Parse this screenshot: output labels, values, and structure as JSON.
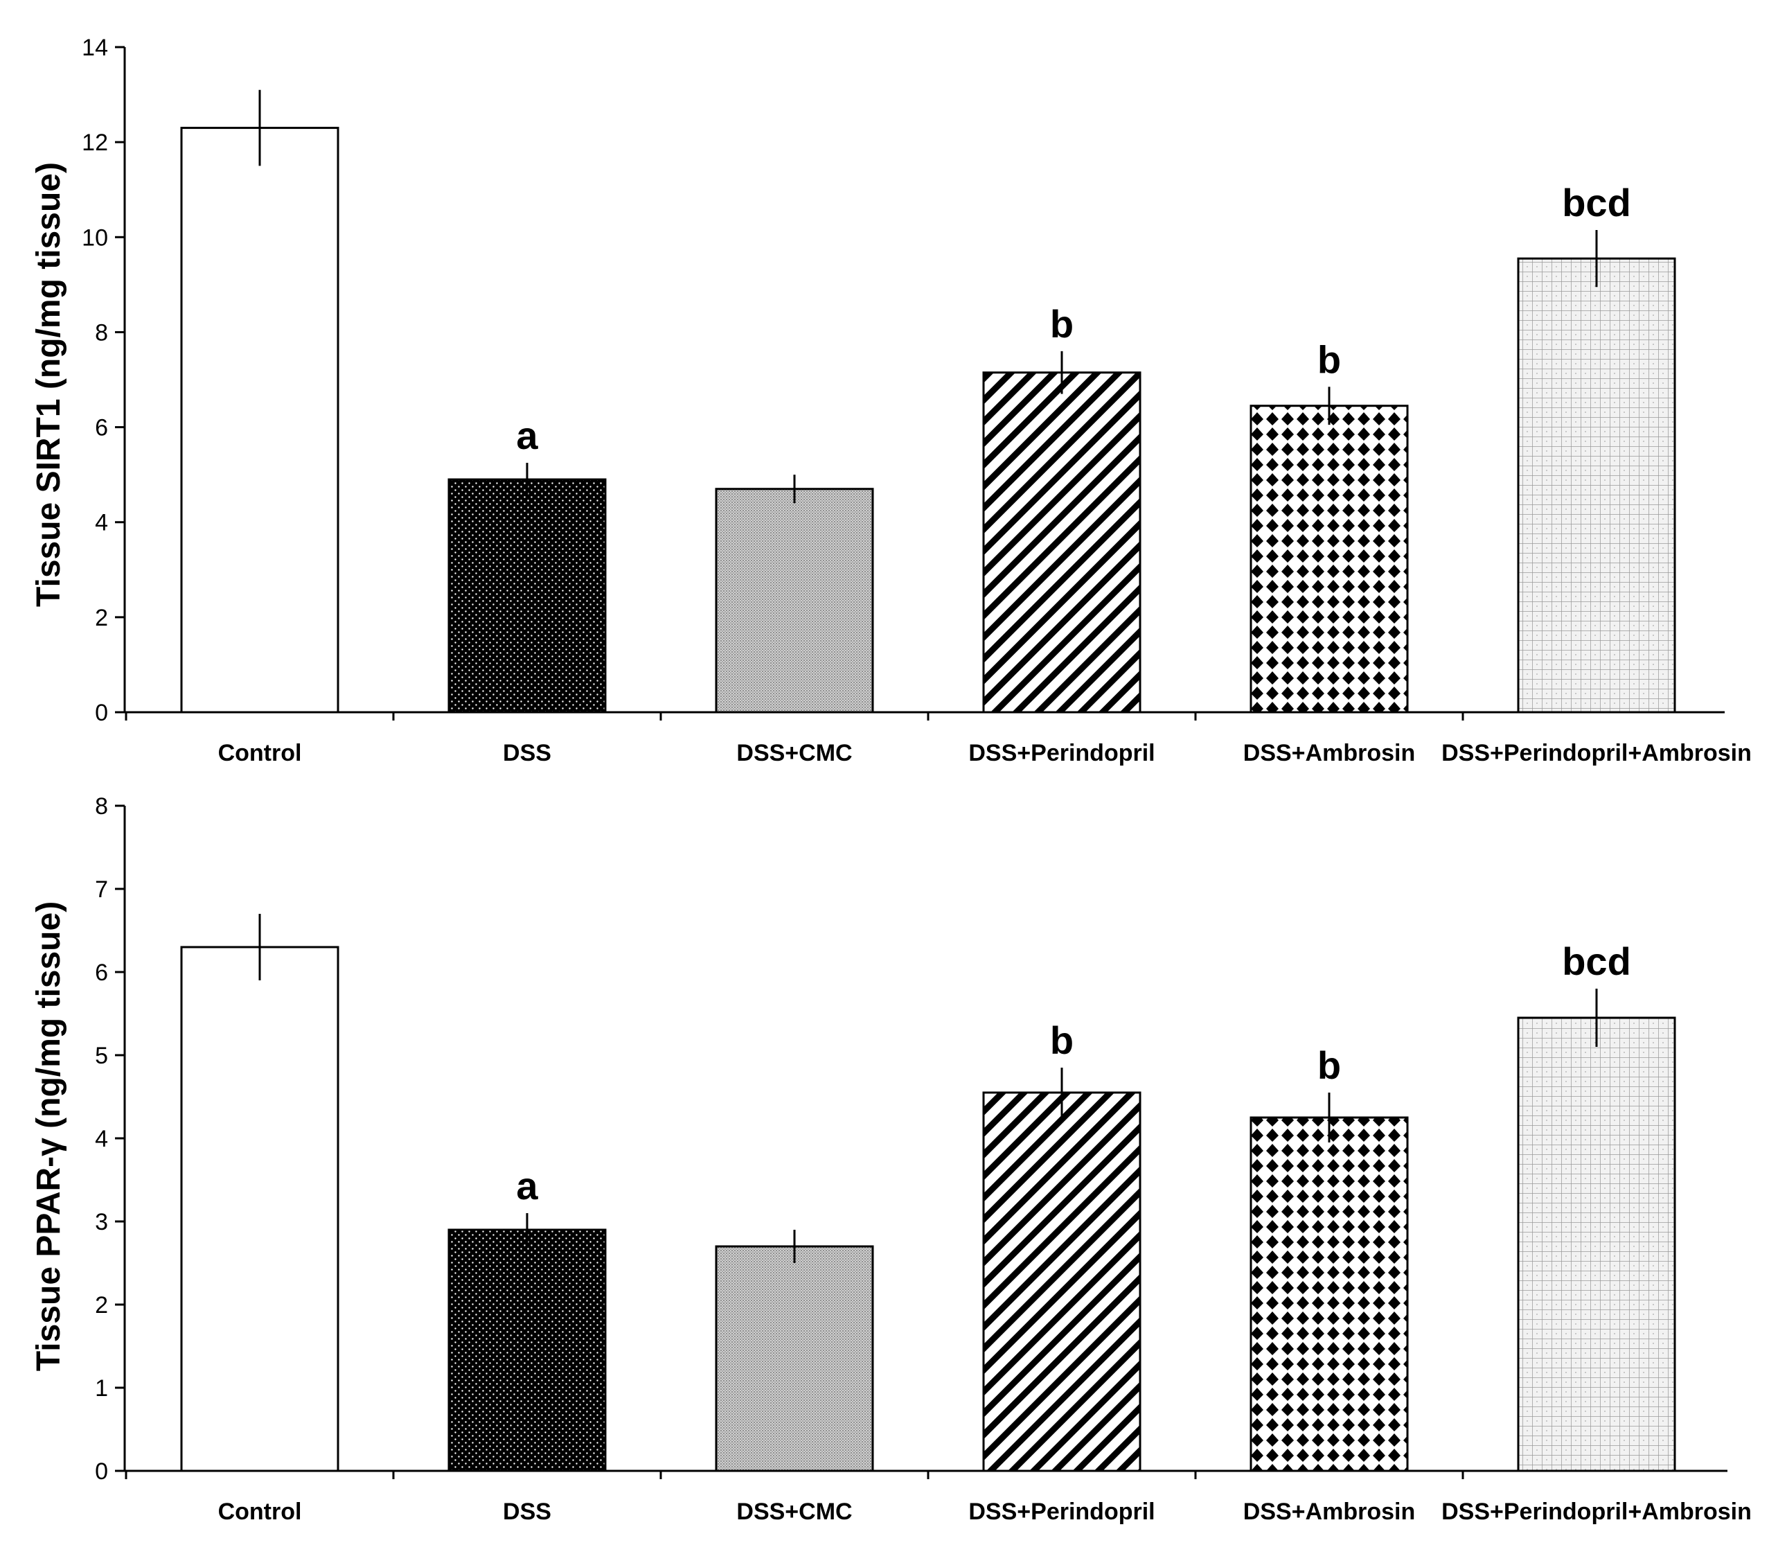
{
  "chart_data": [
    {
      "type": "bar",
      "id": "sirt1",
      "ylabel": "Tissue SIRT1 (ng/mg tissue)",
      "ylim": [
        0,
        14
      ],
      "yticks": [
        0,
        2,
        4,
        6,
        8,
        10,
        12,
        14
      ],
      "categories": [
        "Control",
        "DSS",
        "DSS+CMC",
        "DSS+Perindopril",
        "DSS+Ambrosin",
        "DSS+Perindopril+Ambrosin"
      ],
      "values": [
        12.3,
        4.9,
        4.7,
        7.15,
        6.45,
        9.55
      ],
      "errors": [
        0.8,
        0.35,
        0.3,
        0.45,
        0.4,
        0.6
      ],
      "significance": [
        "",
        "a",
        "",
        "b",
        "b",
        "bcd"
      ],
      "patterns": [
        "white",
        "black-dots",
        "gray-fine",
        "diagonal",
        "checker",
        "grid"
      ]
    },
    {
      "type": "bar",
      "id": "ppar",
      "ylabel": "Tissue PPAR-γ (ng/mg tissue)",
      "ylim": [
        0,
        8
      ],
      "yticks": [
        0,
        1,
        2,
        3,
        4,
        5,
        6,
        7,
        8
      ],
      "categories": [
        "Control",
        "DSS",
        "DSS+CMC",
        "DSS+Perindopril",
        "DSS+Ambrosin",
        "DSS+Perindopril+Ambrosin"
      ],
      "values": [
        6.3,
        2.9,
        2.7,
        4.55,
        4.25,
        5.45
      ],
      "errors": [
        0.4,
        0.2,
        0.2,
        0.3,
        0.3,
        0.35
      ],
      "significance": [
        "",
        "a",
        "",
        "b",
        "b",
        "bcd"
      ],
      "patterns": [
        "white",
        "black-dots",
        "gray-fine",
        "diagonal",
        "checker",
        "grid"
      ]
    }
  ]
}
